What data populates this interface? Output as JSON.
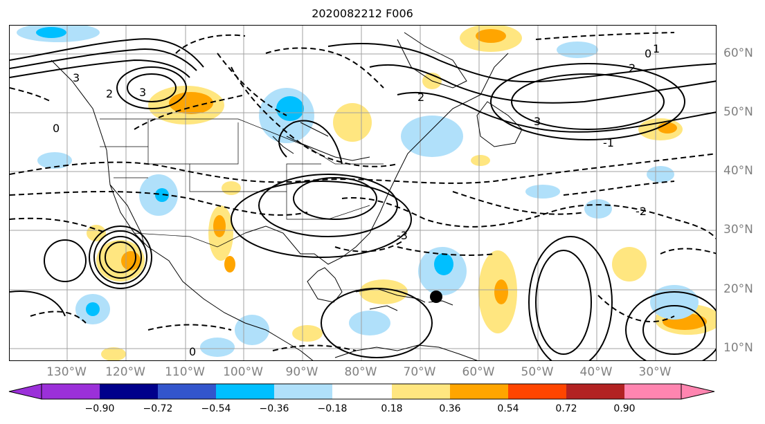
{
  "title": "2020082212 F006",
  "lon_labels": [
    "130°W",
    "120°W",
    "110°W",
    "100°W",
    "90°W",
    "80°W",
    "70°W",
    "60°W",
    "50°W",
    "40°W",
    "30°W"
  ],
  "lat_labels": [
    "60°N",
    "50°N",
    "40°N",
    "30°N",
    "20°N",
    "10°N"
  ],
  "colorbar": {
    "ticks": [
      "−0.90",
      "−0.72",
      "−0.54",
      "−0.36",
      "−0.18",
      "0.18",
      "0.36",
      "0.54",
      "0.72",
      "0.90"
    ],
    "colors": [
      "#9b30d9",
      "#00008b",
      "#3355cc",
      "#00bfff",
      "#b0e0fa",
      "#ffffff",
      "#ffe680",
      "#ffa500",
      "#ff4500",
      "#b22222",
      "#ff85b0"
    ]
  },
  "contour_labels": [
    "0",
    "2",
    "3",
    "-1",
    "-2",
    "-3",
    "1"
  ],
  "marker": "storm-center"
}
